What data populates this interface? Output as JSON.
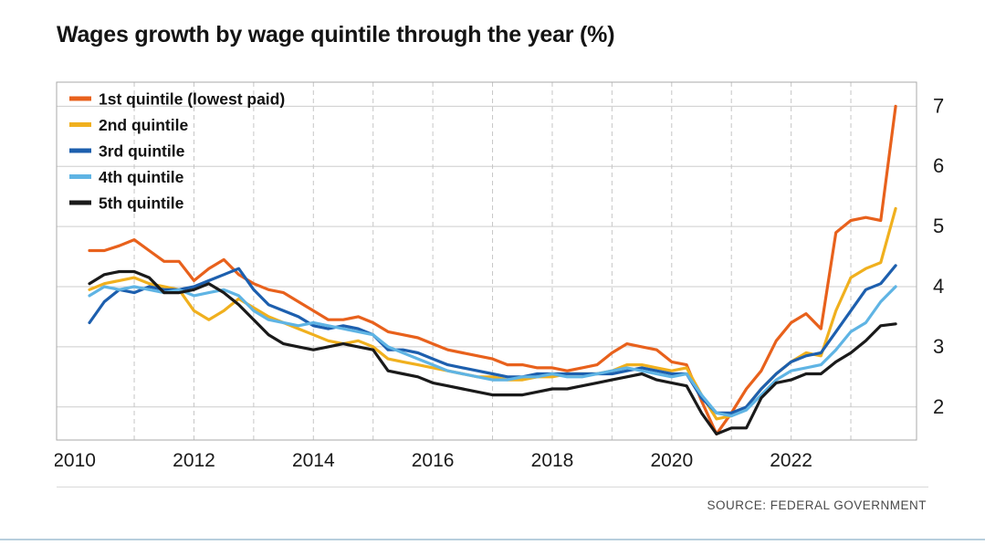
{
  "title": "Wages growth by wage quintile through the year (%)",
  "source": "SOURCE: FEDERAL GOVERNMENT",
  "chart_data": {
    "type": "line",
    "title": "Wages growth by wage quintile through the year (%)",
    "x_start": 2010.25,
    "x_step": 0.25,
    "xlim": [
      2009.7,
      2024.1
    ],
    "ylim": [
      1.45,
      7.4
    ],
    "xticks": [
      2010,
      2012,
      2014,
      2016,
      2018,
      2020,
      2022
    ],
    "yticks": [
      2,
      3,
      4,
      5,
      6,
      7
    ],
    "grid": {
      "horizontal": "solid",
      "vertical": "dashed-yearly",
      "vertical_years": [
        2011,
        2023
      ]
    },
    "legend_position": "top-left-inside",
    "series": [
      {
        "name": "1st quintile (lowest paid)",
        "color": "#e8611c",
        "values": [
          4.6,
          4.6,
          4.68,
          4.78,
          4.6,
          4.42,
          4.42,
          4.1,
          4.3,
          4.45,
          4.2,
          4.05,
          3.95,
          3.9,
          3.75,
          3.6,
          3.45,
          3.45,
          3.5,
          3.4,
          3.25,
          3.2,
          3.15,
          3.05,
          2.95,
          2.9,
          2.85,
          2.8,
          2.7,
          2.7,
          2.65,
          2.65,
          2.6,
          2.65,
          2.7,
          2.9,
          3.05,
          3.0,
          2.95,
          2.75,
          2.7,
          2.1,
          1.55,
          1.9,
          2.3,
          2.6,
          3.1,
          3.4,
          3.55,
          3.3,
          4.9,
          5.1,
          5.15,
          5.1,
          7.0
        ]
      },
      {
        "name": "2nd quintile",
        "color": "#f0b01e",
        "values": [
          3.95,
          4.05,
          4.1,
          4.15,
          4.05,
          4.0,
          3.95,
          3.6,
          3.45,
          3.6,
          3.8,
          3.65,
          3.5,
          3.4,
          3.3,
          3.2,
          3.1,
          3.05,
          3.1,
          3.0,
          2.8,
          2.75,
          2.7,
          2.65,
          2.6,
          2.55,
          2.5,
          2.5,
          2.45,
          2.45,
          2.5,
          2.5,
          2.55,
          2.55,
          2.55,
          2.6,
          2.7,
          2.7,
          2.65,
          2.6,
          2.65,
          2.2,
          1.8,
          1.85,
          2.0,
          2.3,
          2.55,
          2.75,
          2.9,
          2.85,
          3.6,
          4.15,
          4.3,
          4.4,
          5.3
        ]
      },
      {
        "name": "3rd quintile",
        "color": "#1d5fae",
        "values": [
          3.4,
          3.75,
          3.95,
          3.9,
          4.0,
          3.95,
          3.95,
          4.0,
          4.1,
          4.2,
          4.3,
          3.95,
          3.7,
          3.6,
          3.5,
          3.35,
          3.3,
          3.35,
          3.3,
          3.2,
          2.95,
          2.95,
          2.9,
          2.8,
          2.7,
          2.65,
          2.6,
          2.55,
          2.5,
          2.5,
          2.55,
          2.55,
          2.55,
          2.55,
          2.55,
          2.55,
          2.6,
          2.65,
          2.6,
          2.55,
          2.55,
          2.15,
          1.9,
          1.9,
          2.0,
          2.3,
          2.55,
          2.75,
          2.85,
          2.9,
          3.25,
          3.6,
          3.95,
          4.05,
          4.35
        ]
      },
      {
        "name": "4th quintile",
        "color": "#5fb4e4",
        "values": [
          3.85,
          4.0,
          3.95,
          4.0,
          3.95,
          3.9,
          3.95,
          3.85,
          3.9,
          3.95,
          3.85,
          3.6,
          3.45,
          3.4,
          3.35,
          3.4,
          3.35,
          3.3,
          3.25,
          3.2,
          3.0,
          2.9,
          2.8,
          2.7,
          2.6,
          2.55,
          2.5,
          2.45,
          2.45,
          2.5,
          2.5,
          2.55,
          2.5,
          2.5,
          2.55,
          2.6,
          2.65,
          2.6,
          2.55,
          2.5,
          2.55,
          2.2,
          1.9,
          1.85,
          1.95,
          2.2,
          2.45,
          2.6,
          2.65,
          2.7,
          2.95,
          3.25,
          3.4,
          3.75,
          4.0
        ]
      },
      {
        "name": "5th quintile",
        "color": "#1a1a1a",
        "values": [
          4.05,
          4.2,
          4.25,
          4.25,
          4.15,
          3.9,
          3.9,
          3.95,
          4.05,
          3.9,
          3.7,
          3.45,
          3.2,
          3.05,
          3.0,
          2.95,
          3.0,
          3.05,
          3.0,
          2.95,
          2.6,
          2.55,
          2.5,
          2.4,
          2.35,
          2.3,
          2.25,
          2.2,
          2.2,
          2.2,
          2.25,
          2.3,
          2.3,
          2.35,
          2.4,
          2.45,
          2.5,
          2.55,
          2.45,
          2.4,
          2.35,
          1.9,
          1.55,
          1.65,
          1.65,
          2.15,
          2.4,
          2.45,
          2.55,
          2.55,
          2.75,
          2.9,
          3.1,
          3.35,
          3.38
        ]
      }
    ]
  }
}
